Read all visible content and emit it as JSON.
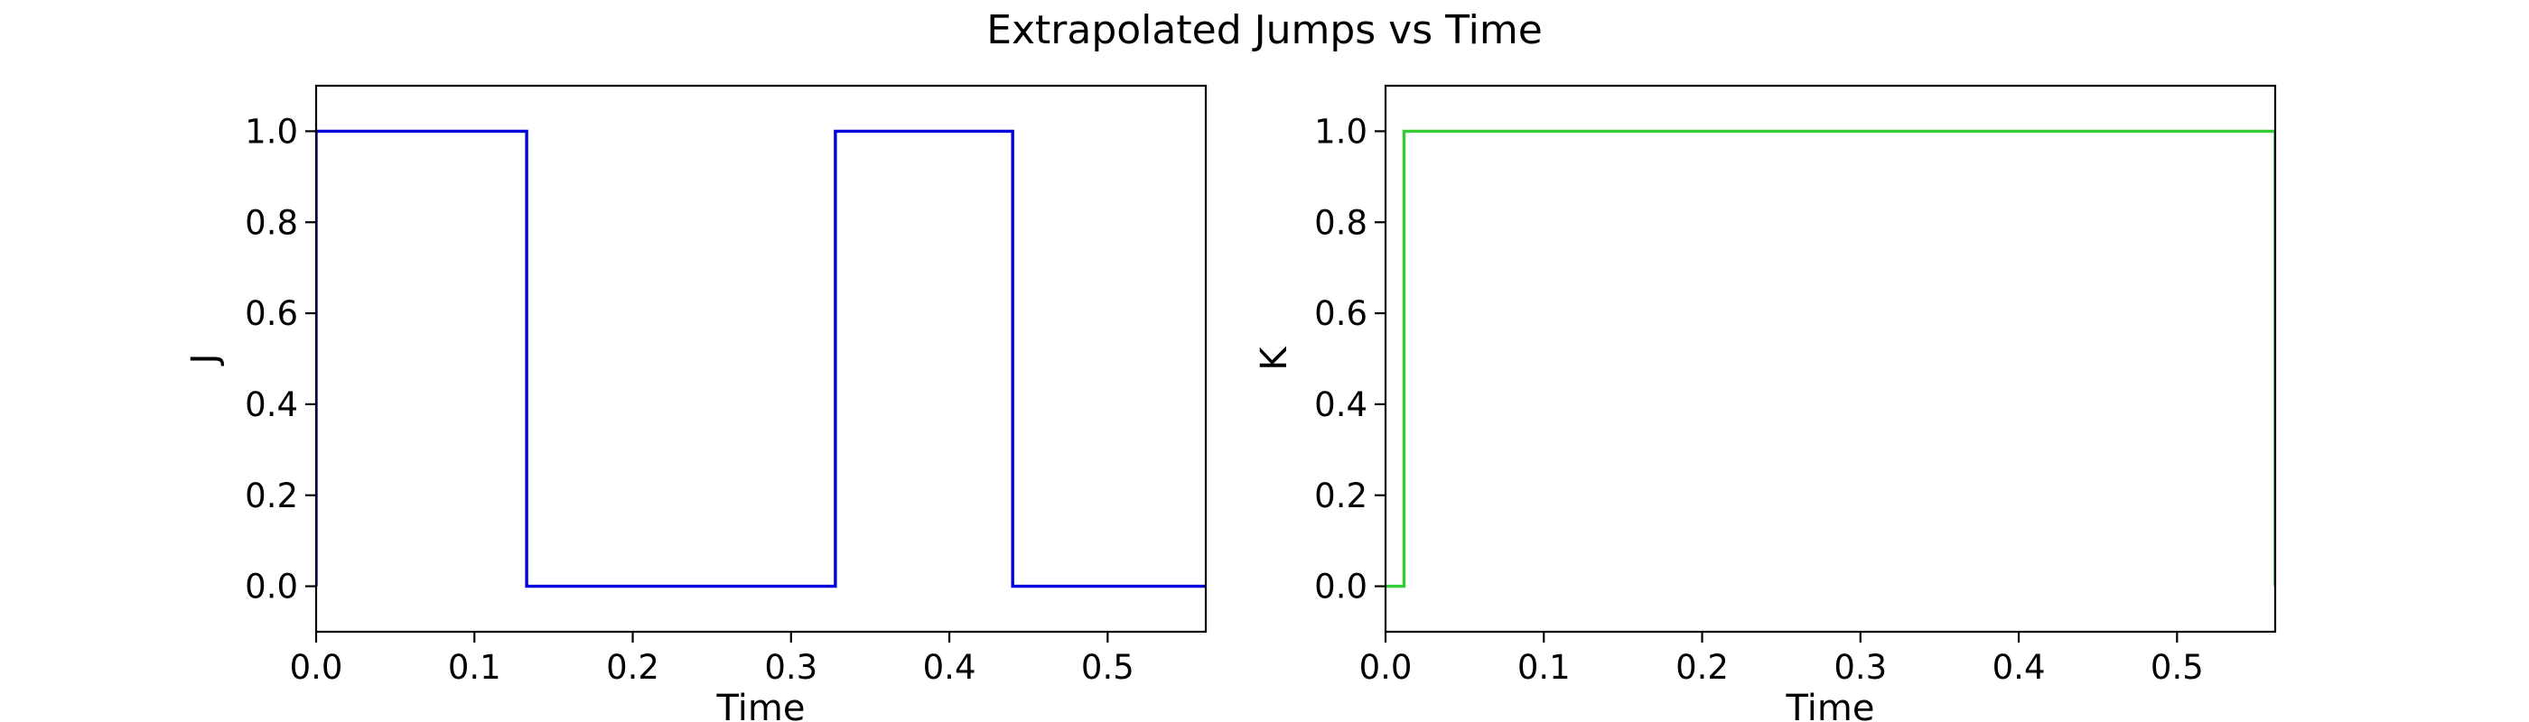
{
  "figure": {
    "title": "Extrapolated Jumps vs Time"
  },
  "chart_data": [
    {
      "type": "line",
      "title": "",
      "xlabel": "Time",
      "ylabel": "J",
      "xlim": [
        0.0,
        0.562
      ],
      "ylim": [
        -0.1,
        1.1
      ],
      "xticks": [
        0.0,
        0.1,
        0.2,
        0.3,
        0.4,
        0.5
      ],
      "xtick_labels": [
        "0.0",
        "0.1",
        "0.2",
        "0.3",
        "0.4",
        "0.5"
      ],
      "yticks": [
        0.0,
        0.2,
        0.4,
        0.6,
        0.8,
        1.0
      ],
      "ytick_labels": [
        "0.0",
        "0.2",
        "0.4",
        "0.6",
        "0.8",
        "1.0"
      ],
      "grid": false,
      "series": [
        {
          "color": "#0000dd",
          "x": [
            0.0,
            0.0,
            0.133,
            0.133,
            0.328,
            0.328,
            0.44,
            0.44,
            0.562
          ],
          "y": [
            0,
            1,
            1,
            0,
            0,
            1,
            1,
            0,
            0
          ]
        }
      ]
    },
    {
      "type": "line",
      "title": "",
      "xlabel": "Time",
      "ylabel": "K",
      "xlim": [
        0.0,
        0.562
      ],
      "ylim": [
        -0.1,
        1.1
      ],
      "xticks": [
        0.0,
        0.1,
        0.2,
        0.3,
        0.4,
        0.5
      ],
      "xtick_labels": [
        "0.0",
        "0.1",
        "0.2",
        "0.3",
        "0.4",
        "0.5"
      ],
      "yticks": [
        0.0,
        0.2,
        0.4,
        0.6,
        0.8,
        1.0
      ],
      "ytick_labels": [
        "0.0",
        "0.2",
        "0.4",
        "0.6",
        "0.8",
        "1.0"
      ],
      "grid": false,
      "series": [
        {
          "color": "#33cc33",
          "x": [
            0.0,
            0.0117,
            0.0117,
            0.562,
            0.562
          ],
          "y": [
            0,
            0,
            1,
            1,
            0
          ]
        }
      ]
    }
  ]
}
